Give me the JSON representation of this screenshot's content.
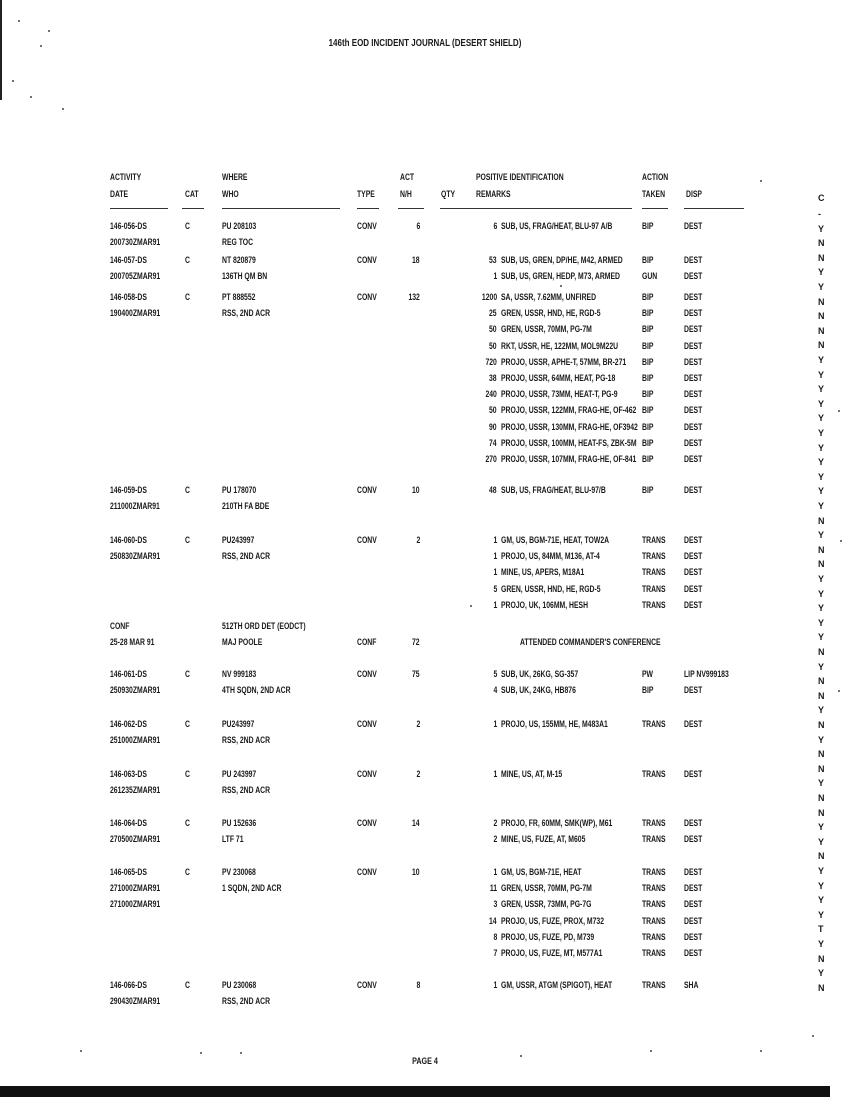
{
  "title": "146th EOD INCIDENT JOURNAL  (DESERT SHIELD)",
  "headers": {
    "activity": "ACTIVITY",
    "date": "DATE",
    "cat": "CAT",
    "where": "WHERE",
    "who": "WHO",
    "type": "TYPE",
    "act": "ACT",
    "nh": "N/H",
    "qty": "QTY",
    "posid": "POSITIVE IDENTIFICATION",
    "remarks": "REMARKS",
    "action": "ACTION",
    "taken": "TAKEN",
    "disp": "DISP",
    "c": "C"
  },
  "entries": [
    {
      "lines": [
        {
          "date": "146-056-DS",
          "cat": "C",
          "where": "PU 208103",
          "type": "CONV",
          "act": "6",
          "qty": "6",
          "remarks": "SUB, US, FRAG/HEAT, BLU-97 A/B",
          "action": "BIP",
          "disp": "DEST"
        },
        {
          "date": "200730ZMAR91",
          "where": "REG TOC"
        }
      ]
    },
    {
      "lines": [
        {
          "date": "146-057-DS",
          "cat": "C",
          "where": "NT 820879",
          "type": "CONV",
          "act": "18",
          "qty": "53",
          "remarks": "SUB, US, GREN, DP/HE, M42, ARMED",
          "action": "BIP",
          "disp": "DEST"
        },
        {
          "date": "200705ZMAR91",
          "where": "136TH QM BN",
          "qty": "1",
          "remarks": "SUB, US, GREN, HEDP, M73, ARMED",
          "action": "GUN",
          "disp": "DEST"
        }
      ]
    },
    {
      "lines": [
        {
          "date": "146-058-DS",
          "cat": "C",
          "where": "PT 888552",
          "type": "CONV",
          "act": "132",
          "qty": "1200",
          "remarks": "SA, USSR, 7.62MM, UNFIRED",
          "action": "BIP",
          "disp": "DEST"
        },
        {
          "date": "190400ZMAR91",
          "where": "RSS, 2ND ACR",
          "qty": "25",
          "remarks": "GREN, USSR, HND, HE, RGD-5",
          "action": "BIP",
          "disp": "DEST"
        },
        {
          "qty": "50",
          "remarks": "GREN, USSR, 70MM, PG-7M",
          "action": "BIP",
          "disp": "DEST"
        },
        {
          "qty": "50",
          "remarks": "RKT, USSR, HE, 122MM, MOL9M22U",
          "action": "BIP",
          "disp": "DEST"
        },
        {
          "qty": "720",
          "remarks": "PROJO, USSR, APHE-T, 57MM, BR-271",
          "action": "BIP",
          "disp": "DEST"
        },
        {
          "qty": "38",
          "remarks": "PROJO, USSR, 64MM, HEAT, PG-18",
          "action": "BIP",
          "disp": "DEST"
        },
        {
          "qty": "240",
          "remarks": "PROJO, USSR, 73MM, HEAT-T, PG-9",
          "action": "BIP",
          "disp": "DEST"
        },
        {
          "qty": "50",
          "remarks": "PROJO, USSR, 122MM, FRAG-HE, OF-462",
          "action": "BIP",
          "disp": "DEST"
        },
        {
          "qty": "90",
          "remarks": "PROJO, USSR, 130MM, FRAG-HE, OF3942",
          "action": "BIP",
          "disp": "DEST"
        },
        {
          "qty": "74",
          "remarks": "PROJO, USSR, 100MM, HEAT-FS, ZBK-5M",
          "action": "BIP",
          "disp": "DEST"
        },
        {
          "qty": "270",
          "remarks": "PROJO, USSR, 107MM, FRAG-HE, OF-841",
          "action": "BIP",
          "disp": "DEST"
        }
      ]
    },
    {
      "lines": [
        {
          "date": "146-059-DS",
          "cat": "C",
          "where": "PU 178070",
          "type": "CONV",
          "act": "10",
          "qty": "48",
          "remarks": "SUB, US, FRAG/HEAT, BLU-97/B",
          "action": "BIP",
          "disp": "DEST"
        },
        {
          "date": "211000ZMAR91",
          "where": "210TH FA BDE"
        }
      ]
    },
    {
      "lines": [
        {
          "date": "146-060-DS",
          "cat": "C",
          "where": "PU243997",
          "type": "CONV",
          "act": "2",
          "qty": "1",
          "remarks": "GM, US, BGM-71E, HEAT, TOW2A",
          "action": "TRANS",
          "disp": "DEST"
        },
        {
          "date": "250830ZMAR91",
          "where": "RSS, 2ND ACR",
          "qty": "1",
          "remarks": "PROJO, US, 84MM, M136, AT-4",
          "action": "TRANS",
          "disp": "DEST"
        },
        {
          "qty": "1",
          "remarks": "MINE, US, APERS, M18A1",
          "action": "TRANS",
          "disp": "DEST"
        },
        {
          "qty": "5",
          "remarks": "GREN, USSR, HND, HE, RGD-5",
          "action": "TRANS",
          "disp": "DEST"
        },
        {
          "qty": "1",
          "remarks": "PROJO, UK, 106MM, HESH",
          "action": "TRANS",
          "disp": "DEST"
        }
      ]
    },
    {
      "lines": [
        {
          "date": "CONF",
          "where": "512TH ORD DET (EODCT)"
        },
        {
          "date": "25-28 MAR 91",
          "where": "MAJ POOLE",
          "type": "CONF",
          "act": "72",
          "remarks": "ATTENDED COMMANDER'S CONFERENCE"
        }
      ]
    },
    {
      "lines": [
        {
          "date": "146-061-DS",
          "cat": "C",
          "where": "NV 999183",
          "type": "CONV",
          "act": "75",
          "qty": "5",
          "remarks": "SUB, UK, 26KG, SG-357",
          "action": "PW",
          "disp": "LIP NV999183"
        },
        {
          "date": "250930ZMAR91",
          "where": "4TH SQDN, 2ND ACR",
          "qty": "4",
          "remarks": "SUB, UK, 24KG, HB876",
          "action": "BIP",
          "disp": "DEST"
        }
      ]
    },
    {
      "lines": [
        {
          "date": "146-062-DS",
          "cat": "C",
          "where": "PU243997",
          "type": "CONV",
          "act": "2",
          "qty": "1",
          "remarks": "PROJO, US, 155MM, HE, M483A1",
          "action": "TRANS",
          "disp": "DEST"
        },
        {
          "date": "251000ZMAR91",
          "where": "RSS, 2ND ACR"
        }
      ]
    },
    {
      "lines": [
        {
          "date": "146-063-DS",
          "cat": "C",
          "where": "PU 243997",
          "type": "CONV",
          "act": "2",
          "qty": "1",
          "remarks": "MINE, US, AT, M-15",
          "action": "TRANS",
          "disp": "DEST"
        },
        {
          "date": "261235ZMAR91",
          "where": "RSS, 2ND ACR"
        }
      ]
    },
    {
      "lines": [
        {
          "date": "146-064-DS",
          "cat": "C",
          "where": "PU 152636",
          "type": "CONV",
          "act": "14",
          "qty": "2",
          "remarks": "PROJO, FR, 60MM, SMK(WP), M61",
          "action": "TRANS",
          "disp": "DEST"
        },
        {
          "date": "270500ZMAR91",
          "where": "LTF 71",
          "qty": "2",
          "remarks": "MINE, US, FUZE, AT, M605",
          "action": "TRANS",
          "disp": "DEST"
        }
      ]
    },
    {
      "lines": [
        {
          "date": "146-065-DS",
          "cat": "C",
          "where": "PV 230068",
          "type": "CONV",
          "act": "10",
          "qty": "1",
          "remarks": "GM, US, BGM-71E, HEAT",
          "action": "TRANS",
          "disp": "DEST"
        },
        {
          "date": "271000ZMAR91",
          "where": "1 SQDN, 2ND ACR",
          "qty": "11",
          "remarks": "GREN, USSR, 70MM, PG-7M",
          "action": "TRANS",
          "disp": "DEST"
        },
        {
          "date": "271000ZMAR91",
          "qty": "3",
          "remarks": "GREN, USSR, 73MM, PG-7G",
          "action": "TRANS",
          "disp": "DEST"
        },
        {
          "qty": "14",
          "remarks": "PROJO, US, FUZE, PROX, M732",
          "action": "TRANS",
          "disp": "DEST"
        },
        {
          "qty": "8",
          "remarks": "PROJO, US, FUZE, PD, M739",
          "action": "TRANS",
          "disp": "DEST"
        },
        {
          "qty": "7",
          "remarks": "PROJO, US, FUZE, MT, M577A1",
          "action": "TRANS",
          "disp": "DEST"
        }
      ]
    },
    {
      "lines": [
        {
          "date": "146-066-DS",
          "cat": "C",
          "where": "PU 230068",
          "type": "CONV",
          "act": "8",
          "qty": "1",
          "remarks": "GM, USSR, ATGM (SPIGOT), HEAT",
          "action": "TRANS",
          "disp": "SHA"
        },
        {
          "date": "290430ZMAR91",
          "where": "RSS, 2ND ACR"
        }
      ]
    }
  ],
  "c_column": [
    "-",
    "Y",
    "N",
    "N",
    "Y",
    "Y",
    "N",
    "N",
    "N",
    "N",
    "Y",
    "Y",
    "Y",
    "Y",
    "Y",
    "Y",
    "Y",
    "Y",
    "Y",
    "Y",
    "Y",
    "N",
    "Y",
    "N",
    "N",
    "Y",
    "Y",
    "Y",
    "Y",
    "Y",
    "N",
    "Y",
    "N",
    "N",
    "Y",
    "N",
    "Y",
    "N",
    "N",
    "Y",
    "N",
    "N",
    "Y",
    "Y",
    "N",
    "Y",
    "Y",
    "Y",
    "Y",
    "T",
    "Y",
    "N",
    "Y",
    "N"
  ],
  "footer": {
    "page": "PAGE 4"
  }
}
